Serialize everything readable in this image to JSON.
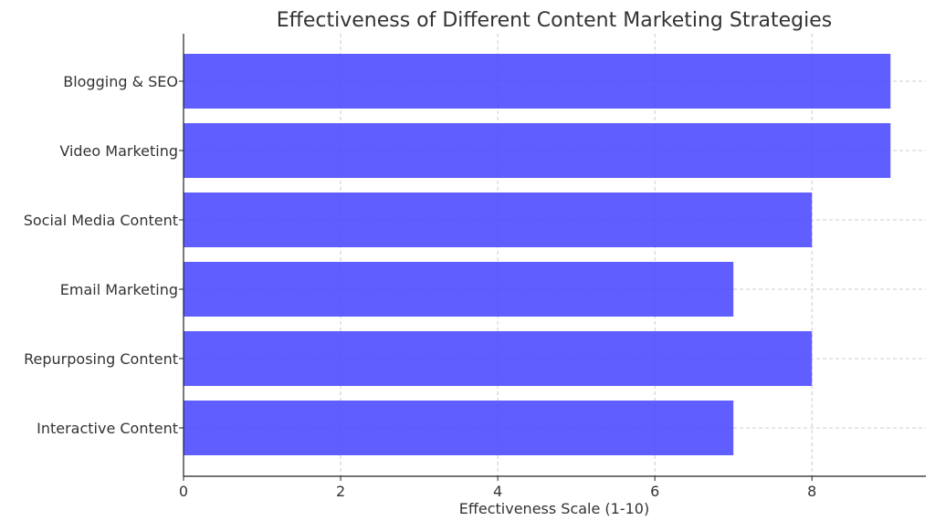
{
  "chart_data": {
    "type": "bar",
    "orientation": "horizontal",
    "title": "Effectiveness of Different Content Marketing Strategies",
    "xlabel": "Effectiveness Scale (1-10)",
    "ylabel": "",
    "categories": [
      "Blogging & SEO",
      "Video Marketing",
      "Social Media Content",
      "Email Marketing",
      "Repurposing Content",
      "Interactive Content"
    ],
    "values": [
      9,
      9,
      8,
      7,
      8,
      7
    ],
    "xlim": [
      0,
      9.45
    ],
    "xticks": [
      "0",
      "2",
      "4",
      "6",
      "8"
    ],
    "grid": true,
    "bar_color": "#4a48ff"
  }
}
